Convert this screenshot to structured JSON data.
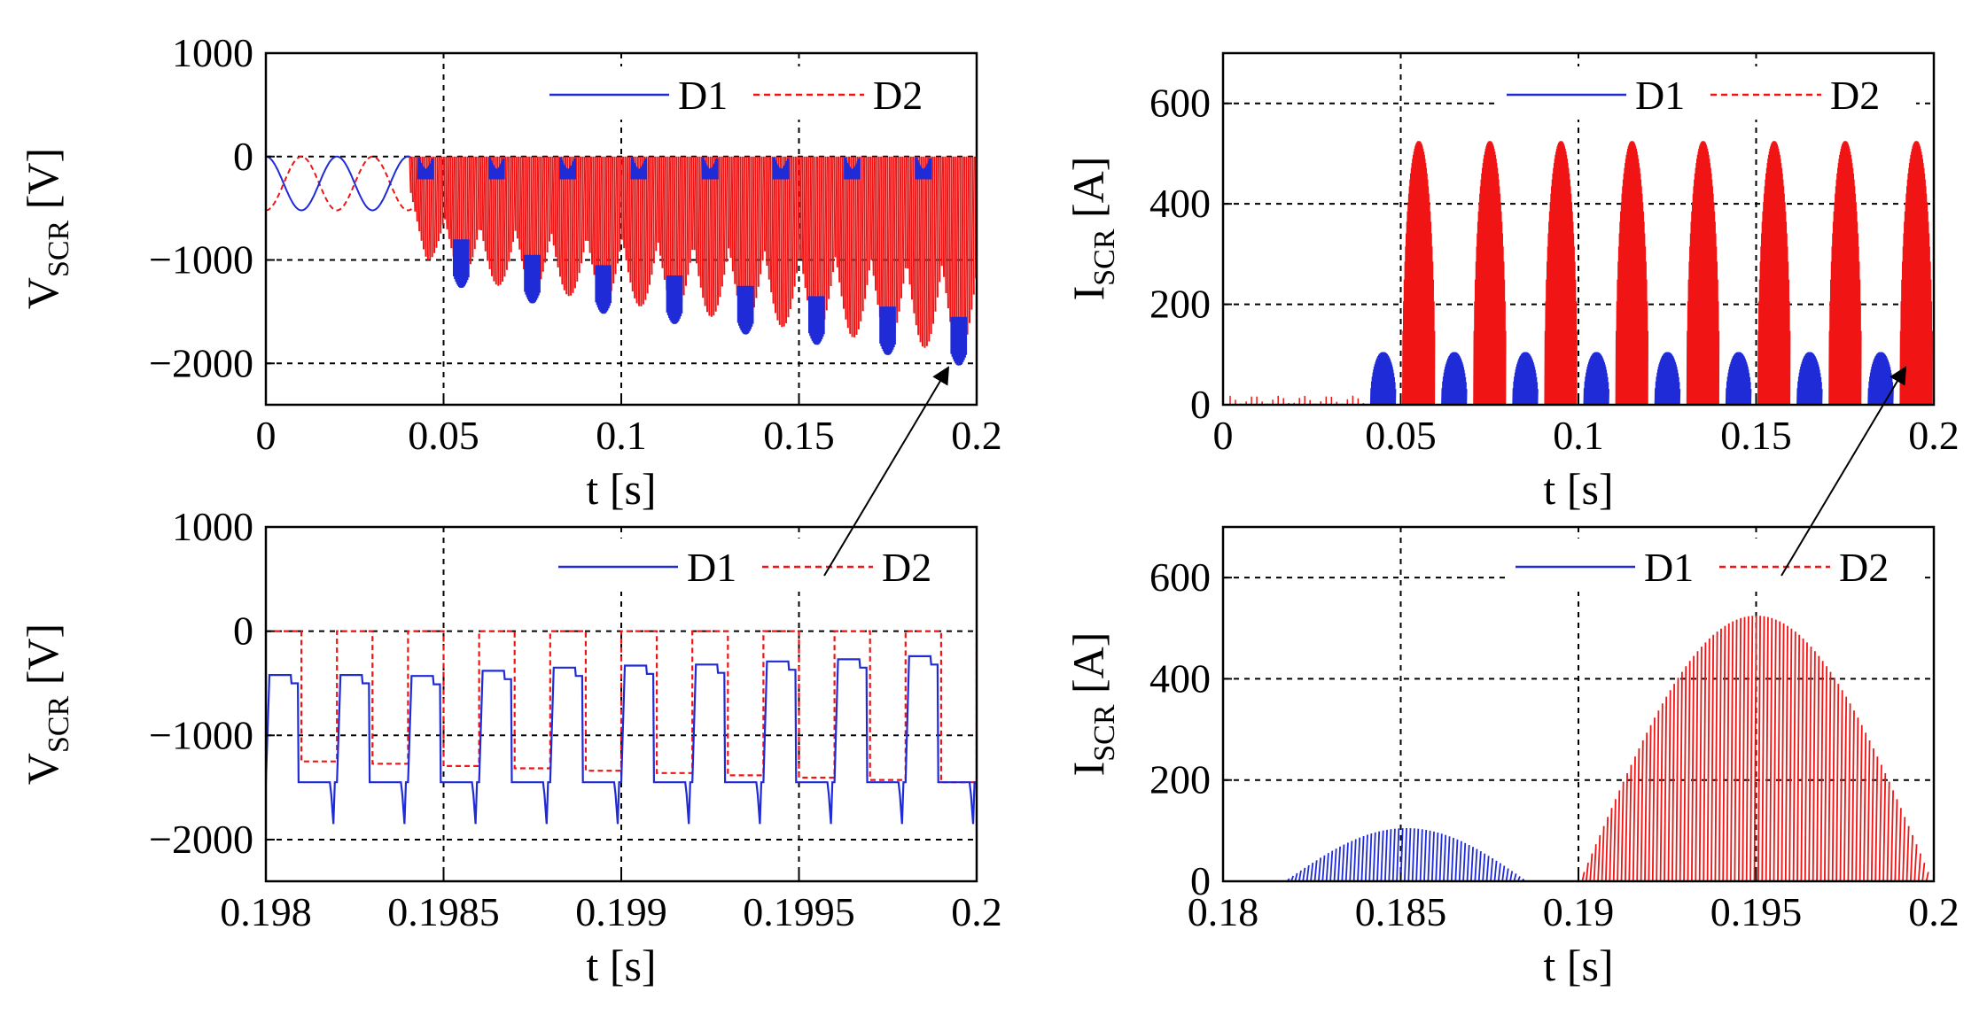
{
  "colors": {
    "d1": "#1f2bd6",
    "d2": "#f01414",
    "grid": "#000000",
    "axis": "#000000"
  },
  "chart_data": [
    {
      "type": "line",
      "id": "vscr-full",
      "xlabel": "t [s]",
      "ylabel_main": "V",
      "ylabel_sub": "SCR",
      "ylabel_unit": "[V]",
      "xlim": [
        0,
        0.2
      ],
      "ylim": [
        -2400,
        1000
      ],
      "xticks": [
        0,
        0.05,
        0.1,
        0.15,
        0.2
      ],
      "xtick_labels": [
        "0",
        "0.05",
        "0.1",
        "0.15",
        "0.2"
      ],
      "yticks": [
        -2000,
        -1000,
        0,
        1000
      ],
      "ytick_labels": [
        "−2000",
        "−1000",
        "0",
        "1000"
      ],
      "legend": [
        "D1",
        "D2"
      ],
      "series": [
        {
          "name": "D1",
          "x": [
            0,
            0.04,
            0.045,
            0.055,
            0.065,
            0.075,
            0.085,
            0.095,
            0.105,
            0.115,
            0.125,
            0.135,
            0.145,
            0.155,
            0.165,
            0.175,
            0.185,
            0.195,
            0.2
          ],
          "y_min": [
            -520,
            -520,
            -900,
            -1150,
            -1250,
            -1300,
            -1350,
            -1400,
            -1450,
            -1500,
            -1550,
            -1600,
            -1650,
            -1700,
            -1750,
            -1800,
            -1850,
            -1900,
            -1900
          ]
        },
        {
          "name": "D2",
          "x": [
            0,
            0.04,
            0.045,
            0.055,
            0.065,
            0.075,
            0.085,
            0.095,
            0.105,
            0.115,
            0.125,
            0.135,
            0.145,
            0.155,
            0.165,
            0.175,
            0.185,
            0.195,
            0.2
          ],
          "y_min": [
            -520,
            -520,
            -1000,
            -1150,
            -1250,
            -1300,
            -1350,
            -1400,
            -1450,
            -1500,
            -1550,
            -1600,
            -1650,
            -1700,
            -1750,
            -1800,
            -1850,
            -1900,
            -1900
          ]
        }
      ]
    },
    {
      "type": "line",
      "id": "iscr-full",
      "xlabel": "t [s]",
      "ylabel_main": "I",
      "ylabel_sub": "SCR",
      "ylabel_unit": "[A]",
      "xlim": [
        0,
        0.2
      ],
      "ylim": [
        0,
        700
      ],
      "xticks": [
        0,
        0.05,
        0.1,
        0.15,
        0.2
      ],
      "xtick_labels": [
        "0",
        "0.05",
        "0.1",
        "0.15",
        "0.2"
      ],
      "yticks": [
        0,
        200,
        400,
        600
      ],
      "ytick_labels": [
        "0",
        "200",
        "400",
        "600"
      ],
      "legend": [
        "D1",
        "D2"
      ],
      "series": [
        {
          "name": "D1",
          "pulse_centers": [
            0.045,
            0.065,
            0.085,
            0.105,
            0.125,
            0.145,
            0.165,
            0.185
          ],
          "peak": 105,
          "half_width": 0.0035
        },
        {
          "name": "D2",
          "pulse_centers": [
            0.055,
            0.075,
            0.095,
            0.115,
            0.135,
            0.155,
            0.175,
            0.195
          ],
          "peak": 525,
          "half_width": 0.0045
        }
      ]
    },
    {
      "type": "line",
      "id": "vscr-zoom",
      "xlabel": "t [s]",
      "ylabel_main": "V",
      "ylabel_sub": "SCR",
      "ylabel_unit": "[V]",
      "xlim": [
        0.198,
        0.2
      ],
      "ylim": [
        -2400,
        1000
      ],
      "xticks": [
        0.198,
        0.1985,
        0.199,
        0.1995,
        0.2
      ],
      "xtick_labels": [
        "0.198",
        "0.1985",
        "0.199",
        "0.1995",
        "0.2"
      ],
      "yticks": [
        -2000,
        -1000,
        0,
        1000
      ],
      "ytick_labels": [
        "−2000",
        "−1000",
        "0",
        "1000"
      ],
      "legend": [
        "D1",
        "D2"
      ],
      "series": [
        {
          "name": "D1",
          "period": 0.0002,
          "first_edge": 0.198,
          "off_level": [
            -420,
            -420,
            -430,
            -380,
            -350,
            -330,
            -320,
            -290,
            -270,
            -240
          ],
          "conduct_level": -1450,
          "spike": -1850
        },
        {
          "name": "D2",
          "period": 0.0002,
          "first_edge": 0.1981,
          "level": -1250,
          "level_end": -1450
        }
      ]
    },
    {
      "type": "line",
      "id": "iscr-zoom",
      "xlabel": "t [s]",
      "ylabel_main": "I",
      "ylabel_sub": "SCR",
      "ylabel_unit": "[A]",
      "xlim": [
        0.18,
        0.2
      ],
      "ylim": [
        0,
        700
      ],
      "xticks": [
        0.18,
        0.185,
        0.19,
        0.195,
        0.2
      ],
      "xtick_labels": [
        "0.18",
        "0.185",
        "0.19",
        "0.195",
        "0.2"
      ],
      "yticks": [
        0,
        200,
        400,
        600
      ],
      "ytick_labels": [
        "0",
        "200",
        "400",
        "600"
      ],
      "legend": [
        "D1",
        "D2"
      ],
      "series": [
        {
          "name": "D1",
          "start": 0.1817,
          "end": 0.1885,
          "peak": 105
        },
        {
          "name": "D2",
          "start": 0.19,
          "end": 0.1999,
          "peak": 525
        }
      ]
    }
  ]
}
